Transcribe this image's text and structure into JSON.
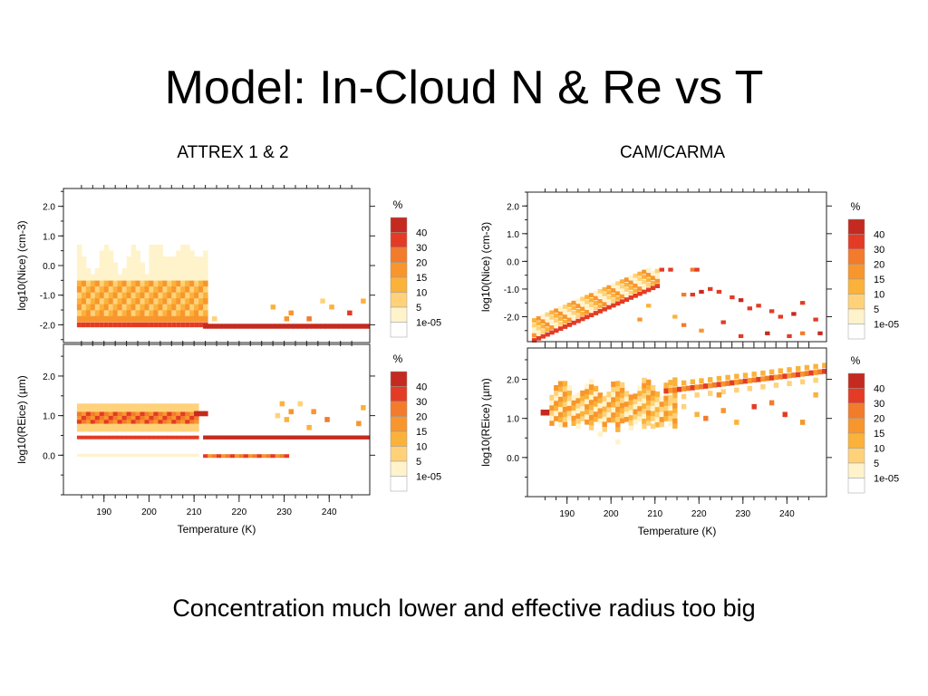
{
  "slide": {
    "title": "Model: In-Cloud N & Re vs T",
    "caption": "Concentration much lower and effective radius too big",
    "left_label": "ATTREX 1 & 2",
    "right_label": "CAM/CARMA"
  },
  "colors": {
    "bins": [
      "#ffffff",
      "#fff3cc",
      "#ffd27a",
      "#fbb23b",
      "#f8962d",
      "#f27b2c",
      "#e33b25",
      "#c42a1f"
    ]
  },
  "chart_data": [
    {
      "type": "heatmap",
      "panel": "attrex-n",
      "ylabel": "log10(Nice) (cm-3)",
      "ylim": [
        -2.6,
        2.6
      ],
      "yticks": [
        "2.0",
        "1.0",
        "0.0",
        "-1.0",
        "-2.0"
      ],
      "xlim": [
        181,
        249
      ],
      "legend_title": "%",
      "legend_labels": [
        "40",
        "30",
        "20",
        "15",
        "10",
        "5",
        "1e-05"
      ]
    },
    {
      "type": "heatmap",
      "panel": "attrex-re",
      "ylabel": "log10(REice) (µm)",
      "xlabel": "Temperature (K)",
      "ylim": [
        -1.0,
        2.8
      ],
      "yticks": [
        "2.0",
        "1.0",
        "0.0"
      ],
      "xlim": [
        181,
        249
      ],
      "xticks": [
        "190",
        "200",
        "210",
        "220",
        "230",
        "240"
      ],
      "legend_title": "%",
      "legend_labels": [
        "40",
        "30",
        "20",
        "15",
        "10",
        "5",
        "1e-05"
      ]
    },
    {
      "type": "heatmap",
      "panel": "carma-n",
      "ylabel": "log10(Nice) (cm-3)",
      "ylim": [
        -2.9,
        2.5
      ],
      "yticks": [
        "2.0",
        "1.0",
        "0.0",
        "-1.0",
        "-2.0"
      ],
      "xlim": [
        181,
        249
      ],
      "legend_title": "%",
      "legend_labels": [
        "40",
        "30",
        "20",
        "15",
        "10",
        "5",
        "1e-05"
      ]
    },
    {
      "type": "heatmap",
      "panel": "carma-re",
      "ylabel": "log10(REice) (µm)",
      "xlabel": "Temperature (K)",
      "ylim": [
        -1.0,
        2.8
      ],
      "yticks": [
        "2.0",
        "1.0",
        "0.0"
      ],
      "xlim": [
        181,
        249
      ],
      "xticks": [
        "190",
        "200",
        "210",
        "220",
        "230",
        "240"
      ],
      "legend_title": "%",
      "legend_labels": [
        "40",
        "30",
        "20",
        "15",
        "10",
        "5",
        "1e-05"
      ]
    }
  ]
}
